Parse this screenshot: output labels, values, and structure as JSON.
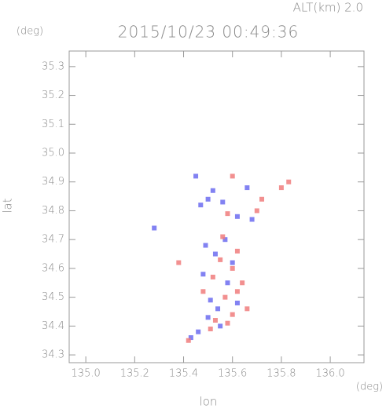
{
  "chart_data": {
    "type": "scatter",
    "title": "2015/10/23 00:49:36",
    "subtitle": "ALT(km) 2.0",
    "x_label": "lon",
    "y_label": "lat",
    "x_unit": "(deg)",
    "y_unit": "(deg)",
    "xlim": [
      134.932,
      136.138
    ],
    "ylim": [
      34.273,
      35.354
    ],
    "xticks": [
      {
        "value": 135.0,
        "label": "135.0"
      },
      135.2,
      135.4,
      135.6,
      135.8,
      {
        "value": 136.0,
        "label": "136.0"
      }
    ],
    "yticks": [
      34.3,
      34.4,
      34.5,
      34.6,
      34.7,
      34.8,
      34.9,
      {
        "value": 35.0,
        "label": "35.0"
      },
      35.1,
      35.2,
      35.3
    ],
    "series": [
      {
        "color": "#6c6cf0",
        "x": [
          135.52,
          135.5,
          135.56,
          135.62,
          135.47,
          135.68,
          135.57,
          135.49,
          135.53,
          135.48,
          135.58,
          135.51,
          135.54,
          135.5,
          135.62,
          135.55,
          135.46,
          135.43,
          135.6,
          135.66,
          135.28,
          135.45
        ],
        "y": [
          34.87,
          34.84,
          34.83,
          34.78,
          34.82,
          34.77,
          34.7,
          34.68,
          34.65,
          34.58,
          34.55,
          34.49,
          34.46,
          34.43,
          34.48,
          34.4,
          34.38,
          34.36,
          34.62,
          34.88,
          34.74,
          34.92
        ]
      },
      {
        "color": "#f07c7c",
        "x": [
          135.6,
          135.72,
          135.83,
          135.8,
          135.7,
          135.58,
          135.56,
          135.62,
          135.55,
          135.6,
          135.52,
          135.64,
          135.57,
          135.6,
          135.53,
          135.58,
          135.51,
          135.42,
          135.38,
          135.66,
          135.48,
          135.62
        ],
        "y": [
          34.92,
          34.84,
          34.9,
          34.88,
          34.8,
          34.79,
          34.71,
          34.66,
          34.63,
          34.6,
          34.57,
          34.55,
          34.5,
          34.44,
          34.42,
          34.41,
          34.39,
          34.35,
          34.62,
          34.46,
          34.52,
          34.52
        ]
      }
    ]
  }
}
